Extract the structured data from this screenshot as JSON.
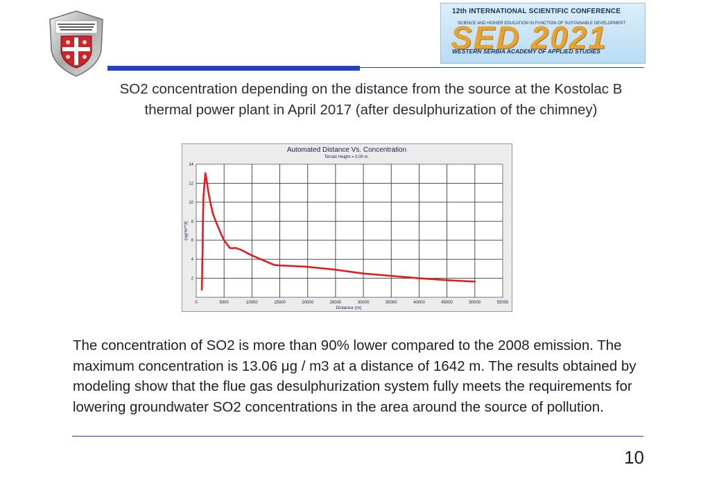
{
  "header": {
    "logo_left": {
      "icon": "university-crest-icon",
      "lettering": "КРИМИНАЛИСТИЧКО-ПОЛИЦИЈСКИ УНИВЕРЗИТЕТ"
    },
    "banner": {
      "line1": "12th INTERNATIONAL SCIENTIFIC CONFERENCE",
      "line2": "SCIENCE AND HIGHER EDUCATION IN FUNCTION OF SUSTAINABLE DEVELOPMENT",
      "big": "SED 2021",
      "line3": "WESTERN SERBIA ACADEMY OF APPLIED STUDIES"
    },
    "accent_color": "#1f44c0"
  },
  "caption": "SO2 concentration depending on the distance from the source at the Kostolac B thermal power plant in April 2017 (after desulphurization of the chimney)",
  "chart_data": {
    "type": "line",
    "title": "Automated Distance Vs. Concentration",
    "subtitle": "Terrain Height = 0.00 m.",
    "xlabel": "Distance (m)",
    "ylabel": "(ug/m**3)",
    "xlim": [
      0,
      55000
    ],
    "ylim": [
      0,
      14
    ],
    "xticks": [
      0,
      5000,
      10000,
      15000,
      20000,
      25000,
      30000,
      35000,
      40000,
      45000,
      50000,
      55000
    ],
    "yticks": [
      2,
      4,
      6,
      8,
      10,
      12,
      14
    ],
    "grid": true,
    "series": [
      {
        "color": "#e8191c",
        "x": [
          1000,
          1050,
          1100,
          1150,
          1200,
          1300,
          1642,
          1900,
          2200,
          2600,
          3000,
          3500,
          4000,
          4500,
          5000,
          5500,
          6000,
          6500,
          7000,
          8000,
          9000,
          10000,
          12000,
          14000,
          15000,
          17000,
          20000,
          25000,
          30000,
          35000,
          40000,
          45000,
          50000
        ],
        "y": [
          0.8,
          2.0,
          4.0,
          4.6,
          7.8,
          10.6,
          13.06,
          12.2,
          11.0,
          9.8,
          8.8,
          8.0,
          7.3,
          6.6,
          6.0,
          5.6,
          5.2,
          5.15,
          5.2,
          5.0,
          4.7,
          4.4,
          3.9,
          3.4,
          3.35,
          3.3,
          3.2,
          2.9,
          2.5,
          2.25,
          2.0,
          1.8,
          1.65
        ]
      }
    ]
  },
  "body_text": "The concentration of SO2 is more than 90% lower compared to the 2008 emission. The maximum concentration is 13.06 μg / m3 at a distance of 1642 m. The results obtained by modeling show that the flue gas desulphurization system fully meets the requirements for lowering groundwater SO2 concentrations in the area around the source of pollution.",
  "page_number": "10"
}
